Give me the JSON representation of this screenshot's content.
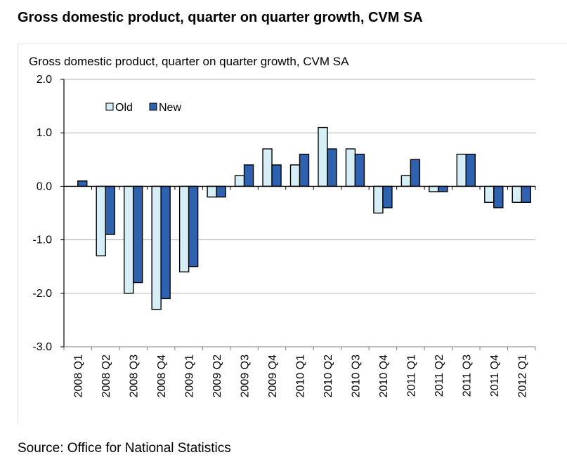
{
  "page": {
    "outer_title": "Gross domestic product, quarter on quarter growth, CVM SA",
    "source": "Source: Office for National Statistics"
  },
  "chart_data": {
    "type": "bar",
    "title": "Gross domestic product, quarter on quarter growth, CVM SA",
    "xlabel": "",
    "ylabel": "",
    "ylim": [
      -3.0,
      2.0
    ],
    "yticks": [
      2.0,
      1.0,
      0.0,
      -1.0,
      -2.0,
      -3.0
    ],
    "ytick_labels": [
      "2.0",
      "1.0",
      "0.0",
      "-1.0",
      "-2.0",
      "-3.0"
    ],
    "grid": true,
    "legend_position": "top-left",
    "categories": [
      "2008 Q1",
      "2008 Q2",
      "2008 Q3",
      "2008 Q4",
      "2009 Q1",
      "2009 Q2",
      "2009 Q3",
      "2009 Q4",
      "2010 Q1",
      "2010 Q2",
      "2010 Q3",
      "2010 Q4",
      "2011 Q1",
      "2011 Q2",
      "2011 Q3",
      "2011 Q4",
      "2012 Q1"
    ],
    "series": [
      {
        "name": "Old",
        "color": "#d6eef5",
        "values": [
          0.0,
          -1.3,
          -2.0,
          -2.3,
          -1.6,
          -0.2,
          0.2,
          0.7,
          0.4,
          1.1,
          0.7,
          -0.5,
          0.2,
          -0.1,
          0.6,
          -0.3,
          -0.3
        ]
      },
      {
        "name": "New",
        "color": "#2e62ae",
        "values": [
          0.1,
          -0.9,
          -1.8,
          -2.1,
          -1.5,
          -0.2,
          0.4,
          0.4,
          0.6,
          0.7,
          0.6,
          -0.4,
          0.5,
          -0.1,
          0.6,
          -0.4,
          -0.3
        ]
      }
    ]
  }
}
